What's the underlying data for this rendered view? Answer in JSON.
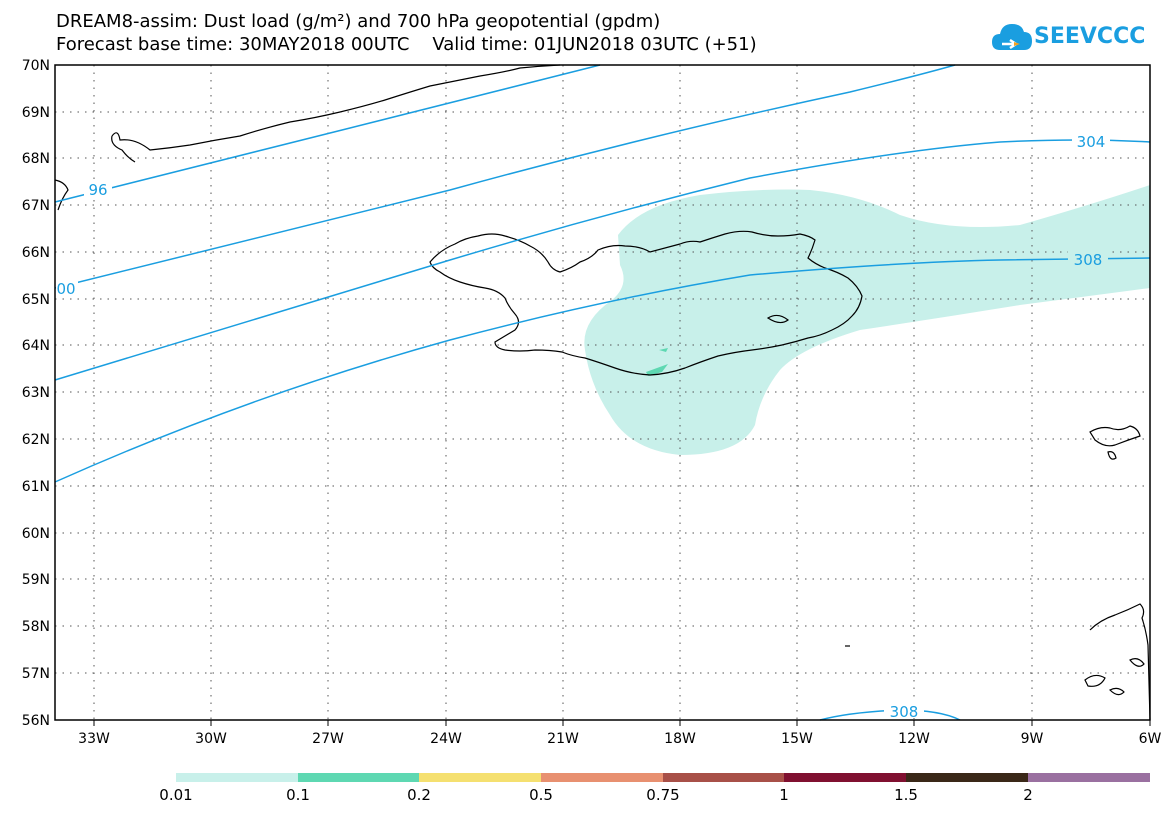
{
  "title_line1": "DREAM8-assim: Dust load (g/m²) and 700 hPa geopotential (gpdm)",
  "title_line2": "Forecast base time: 30MAY2018 00UTC    Valid time: 01JUN2018 03UTC (+51)",
  "logo_text": "SEEVCCC",
  "map": {
    "lat_labels": [
      "70N",
      "69N",
      "68N",
      "67N",
      "66N",
      "65N",
      "64N",
      "63N",
      "62N",
      "61N",
      "60N",
      "59N",
      "58N",
      "57N",
      "56N"
    ],
    "lon_labels": [
      "33W",
      "30W",
      "27W",
      "24W",
      "21W",
      "18W",
      "15W",
      "12W",
      "9W",
      "6W"
    ],
    "contour_labels": [
      "304",
      "96",
      "00",
      "308",
      "308"
    ]
  },
  "legend": {
    "levels": [
      "0.01",
      "0.1",
      "0.2",
      "0.5",
      "0.75",
      "1",
      "1.5",
      "2"
    ],
    "colors": [
      "#c8f0ea",
      "#5ed8b2",
      "#f5e070",
      "#e89070",
      "#a85048",
      "#801030",
      "#3a2818",
      "#9a70a0"
    ]
  },
  "colors": {
    "contour": "#1a9ee0",
    "dust_light": "#c8f0ea",
    "dust_mid": "#5ed8b2"
  }
}
